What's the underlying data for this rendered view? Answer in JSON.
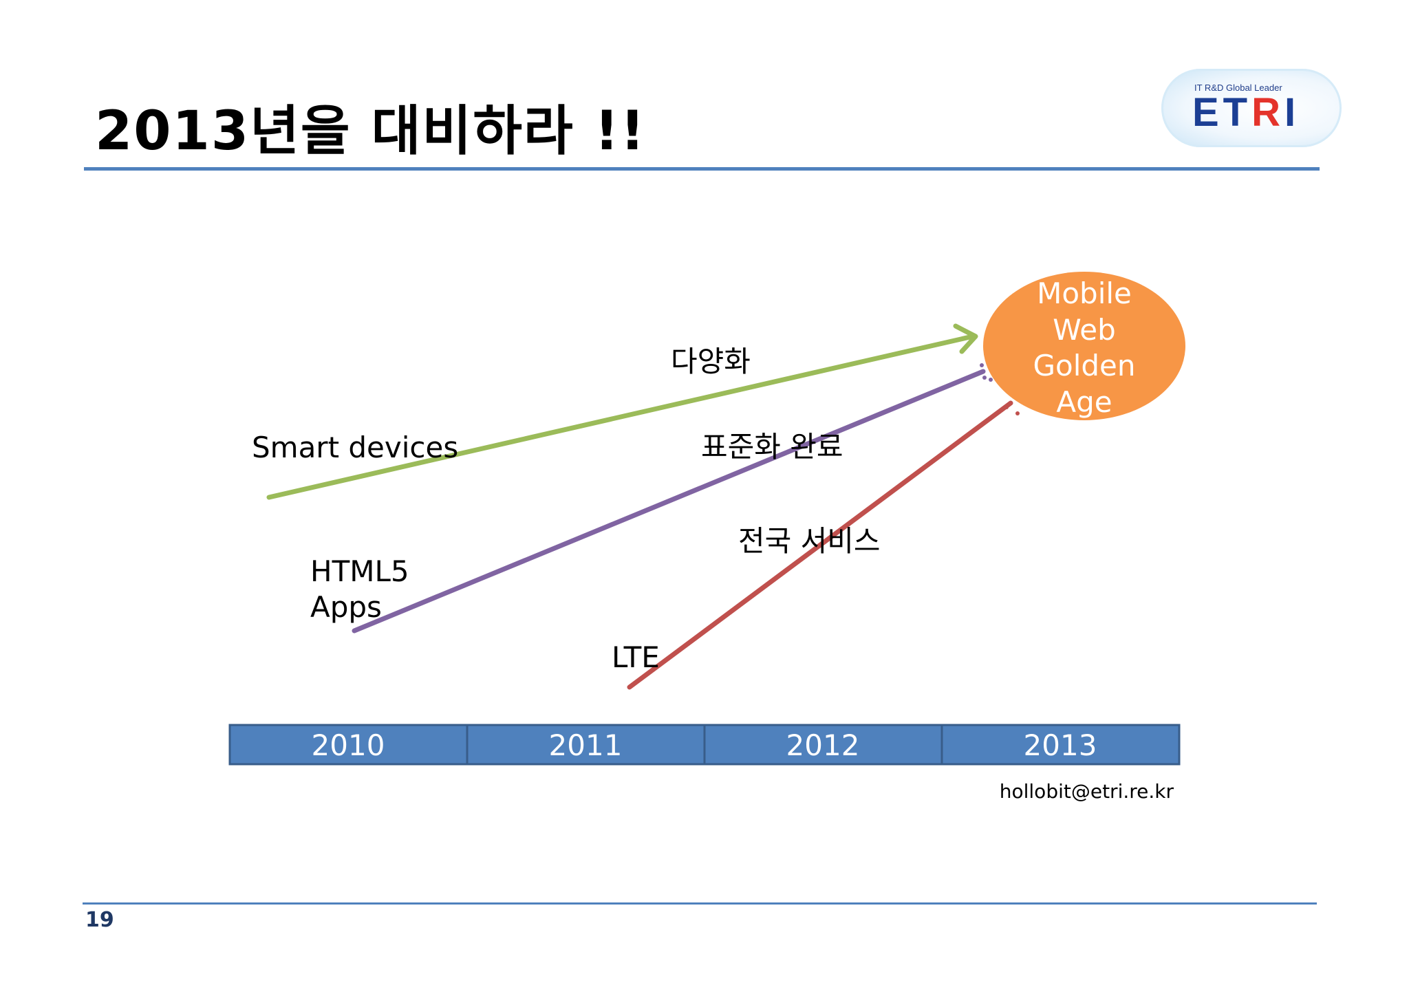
{
  "title": "2013년을 대비하라 !!",
  "logo": {
    "tagline": "IT R&D Global Leader",
    "name_main": "ET",
    "name_accent": "R",
    "name_tail": "I"
  },
  "goal": {
    "lines": [
      "Mobile",
      "Web",
      "Golden",
      "Age"
    ],
    "fill": "#f79646"
  },
  "tracks": [
    {
      "start_label": "Smart devices",
      "middle_label": "다양화",
      "color": "#9bbb59"
    },
    {
      "start_label_lines": [
        "HTML5",
        "Apps"
      ],
      "middle_label": "표준화 완료",
      "color": "#8064a2"
    },
    {
      "start_label": "LTE",
      "middle_label": "전국 서비스",
      "color": "#c0504d"
    }
  ],
  "timeline": {
    "years": [
      "2010",
      "2011",
      "2012",
      "2013"
    ],
    "fill": "#4f81bd",
    "border": "#385d8a"
  },
  "contact": "hollobit@etri.re.kr",
  "page_number": "19"
}
